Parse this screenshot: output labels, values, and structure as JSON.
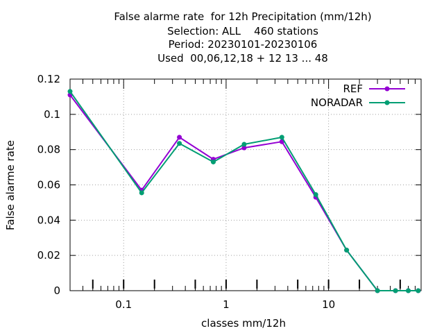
{
  "chart_data": {
    "type": "line",
    "title_lines": [
      "False alarme rate  for 12h Precipitation (mm/12h)",
      "Selection: ALL    460 stations",
      "Period: 20230101-20230106",
      "Used  00,06,12,18 + 12 13 ... 48"
    ],
    "xlabel": "classes mm/12h",
    "ylabel": "False alarme rate",
    "x_scale": "log",
    "xlim": [
      0.03,
      80
    ],
    "ylim": [
      0,
      0.12
    ],
    "x_tick_labels": [
      "0.1",
      "1",
      "10"
    ],
    "y_tick_labels": [
      "0",
      "0.02",
      "0.04",
      "0.06",
      "0.08",
      "0.1",
      "0.12"
    ],
    "grid": true,
    "legend_position": "top-right",
    "x": [
      0.03,
      0.15,
      0.35,
      0.75,
      1.5,
      3.5,
      7.5,
      15,
      30,
      45,
      60,
      75
    ],
    "series": [
      {
        "name": "REF",
        "color": "#9400d3",
        "values": [
          0.111,
          0.057,
          0.087,
          0.0745,
          0.081,
          0.0845,
          0.053,
          0.023,
          0.0,
          0.0,
          0.0,
          0.0
        ]
      },
      {
        "name": "NORADAR",
        "color": "#009e73",
        "values": [
          0.113,
          0.0555,
          0.0835,
          0.073,
          0.083,
          0.087,
          0.0545,
          0.023,
          0.0,
          0.0,
          0.0,
          0.0
        ]
      }
    ]
  }
}
